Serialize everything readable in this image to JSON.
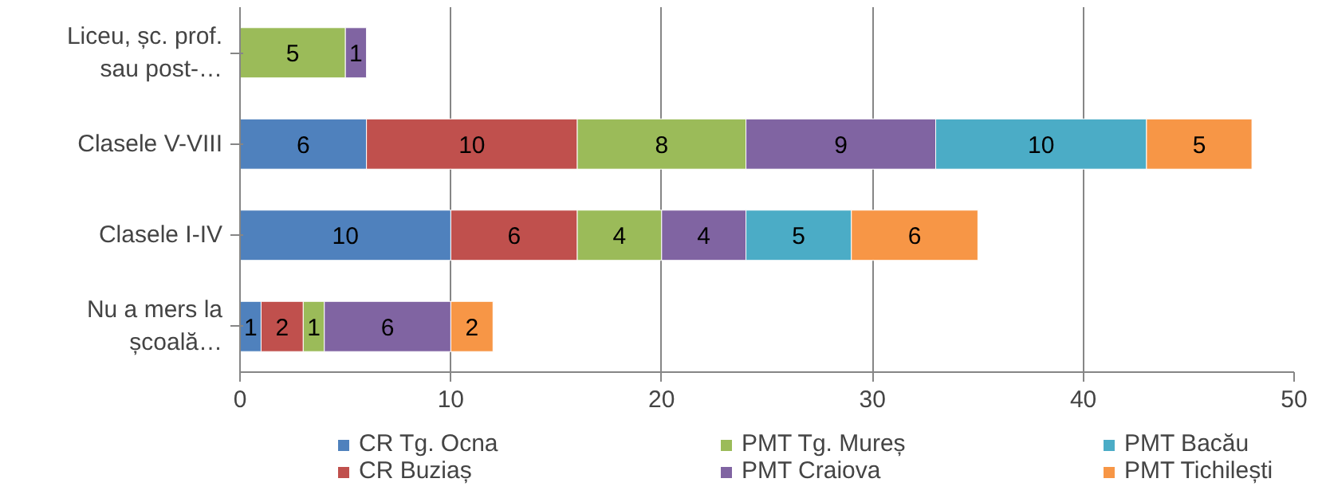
{
  "chart_data": {
    "type": "bar",
    "orientation": "horizontal",
    "stacked": true,
    "data_labels": true,
    "grid": "x",
    "legend": "bottom",
    "categories": [
      "Liceu, șc. prof. sau post-…",
      "Clasele V-VIII",
      "Clasele I-IV",
      "Nu a mers la școală…"
    ],
    "xlim": [
      0,
      50
    ],
    "xticks": [
      0,
      10,
      20,
      30,
      40,
      50
    ],
    "series": [
      {
        "name": "CR Tg. Ocna",
        "color": "#4f81bd",
        "values": [
          null,
          6,
          10,
          1
        ]
      },
      {
        "name": "CR Buziaș",
        "color": "#c0504d",
        "values": [
          null,
          10,
          6,
          2
        ]
      },
      {
        "name": "PMT Tg. Mureș",
        "color": "#9bbb59",
        "values": [
          5,
          8,
          4,
          1
        ]
      },
      {
        "name": "PMT Craiova",
        "color": "#8064a2",
        "values": [
          1,
          9,
          4,
          6
        ]
      },
      {
        "name": "PMT Bacău",
        "color": "#4bacc6",
        "values": [
          null,
          10,
          5,
          null
        ]
      },
      {
        "name": "PMT Tichilești",
        "color": "#f79646",
        "values": [
          null,
          5,
          6,
          2
        ]
      }
    ]
  }
}
